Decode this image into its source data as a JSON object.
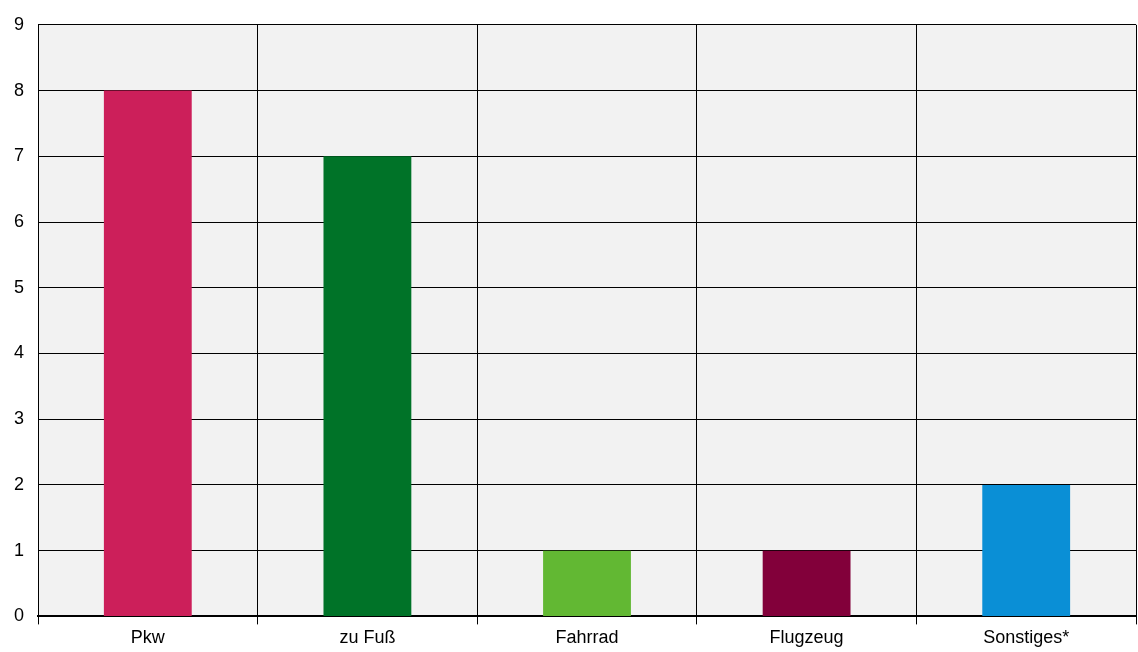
{
  "chart_data": {
    "type": "bar",
    "categories": [
      "Pkw",
      "zu Fuß",
      "Fahrrad",
      "Flugzeug",
      "Sonstiges*"
    ],
    "values": [
      8,
      7,
      1,
      1,
      2
    ],
    "colors": [
      "#cc1f5a",
      "#007328",
      "#62b833",
      "#82003a",
      "#0a8fd6"
    ],
    "ylim": [
      0,
      9
    ],
    "yticks": [
      0,
      1,
      2,
      3,
      4,
      5,
      6,
      7,
      8,
      9
    ],
    "grid": true
  }
}
